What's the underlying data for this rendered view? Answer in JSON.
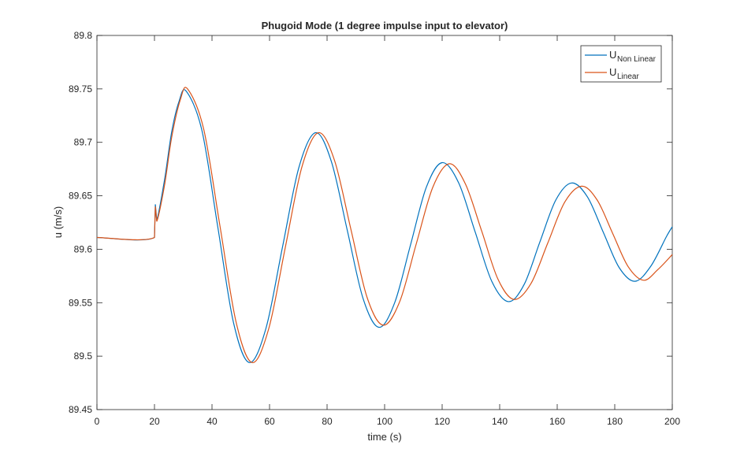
{
  "chart_data": {
    "type": "line",
    "title": "Phugoid Mode (1 degree impulse input to elevator)",
    "xlabel": "time (s)",
    "ylabel": "u (m/s)",
    "xlim": [
      0,
      200
    ],
    "xticks": [
      0,
      20,
      40,
      60,
      80,
      100,
      120,
      140,
      160,
      180,
      200
    ],
    "ylim": [
      89.45,
      89.8
    ],
    "yticks": [
      89.45,
      89.5,
      89.55,
      89.6,
      89.65,
      89.7,
      89.75,
      89.8
    ],
    "legend": "upper right",
    "series": [
      {
        "name": "U",
        "subscript": "Non Linear",
        "color": "#0072bd",
        "x": [
          0,
          20,
          20.3,
          20.8,
          23.5,
          26,
          28.5,
          31,
          36.5,
          42,
          47.5,
          53,
          58.75,
          64.5,
          70.25,
          76,
          81.5,
          87,
          92.5,
          98,
          103.5,
          109,
          114.5,
          120,
          125.75,
          131.5,
          137.25,
          143,
          148.5,
          154,
          159.5,
          165,
          170.5,
          176,
          181.5,
          187,
          192.5,
          198,
          200
        ],
        "values": [
          89.611,
          89.611,
          89.642,
          89.627,
          89.665,
          89.71,
          89.738,
          89.748,
          89.711,
          89.621,
          89.531,
          89.494,
          89.526,
          89.602,
          89.677,
          89.709,
          89.682,
          89.618,
          89.554,
          89.527,
          89.55,
          89.604,
          89.658,
          89.681,
          89.662,
          89.616,
          89.57,
          89.551,
          89.567,
          89.607,
          89.646,
          89.662,
          89.649,
          89.616,
          89.583,
          89.57,
          89.584,
          89.612,
          89.621
        ]
      },
      {
        "name": "U",
        "subscript": "Linear",
        "color": "#d95319",
        "x": [
          0,
          20,
          20.3,
          20.8,
          23.5,
          26,
          29,
          31.5,
          37.1,
          42.75,
          48.4,
          54,
          59.75,
          65.5,
          71.25,
          77,
          82.6,
          88.25,
          93.9,
          99.5,
          105.25,
          111,
          116.75,
          122.5,
          128.1,
          133.75,
          139.4,
          145,
          150.9,
          156.75,
          162.6,
          168.5,
          173.9,
          179.25,
          184.6,
          190,
          195,
          200
        ],
        "values": [
          89.611,
          89.611,
          89.64,
          89.626,
          89.66,
          89.705,
          89.74,
          89.75,
          89.7125,
          89.622,
          89.5315,
          89.494,
          89.526,
          89.602,
          89.677,
          89.709,
          89.683,
          89.619,
          89.555,
          89.529,
          89.551,
          89.605,
          89.658,
          89.68,
          89.661,
          89.617,
          89.572,
          89.553,
          89.568,
          89.606,
          89.644,
          89.659,
          89.646,
          89.615,
          89.584,
          89.571,
          89.581,
          89.595
        ]
      }
    ]
  }
}
